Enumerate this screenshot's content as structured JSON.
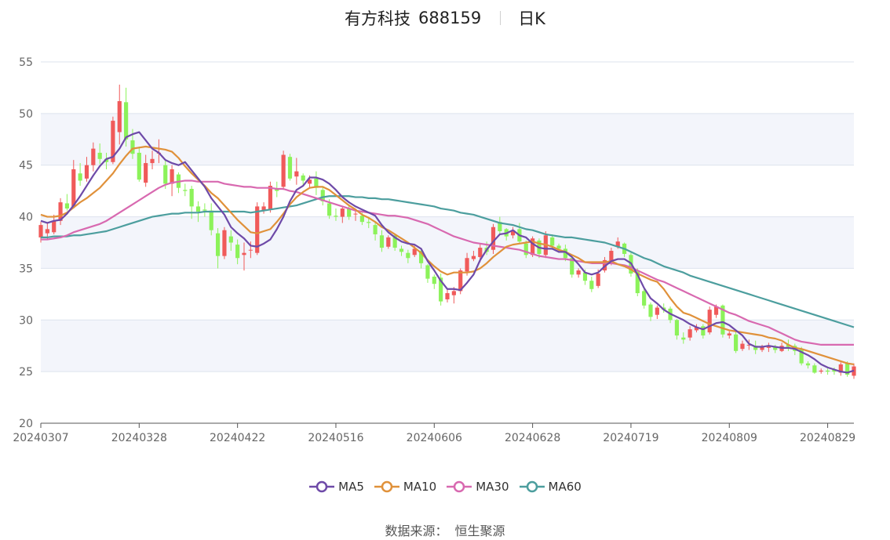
{
  "title": {
    "name": "有方科技",
    "code": "688159",
    "period": "日K"
  },
  "source": {
    "label": "数据来源：",
    "value": "恒生聚源"
  },
  "colors": {
    "up": "#f05a5a",
    "down": "#8cf25a",
    "ma5": "#6e4aa8",
    "ma10": "#e0913a",
    "ma30": "#d869b0",
    "ma60": "#4c9e9e",
    "band": "#f3f5fb",
    "grid": "#dde3ee"
  },
  "chart_data": {
    "type": "candlestick",
    "y_axis": {
      "min": 20,
      "max": 55,
      "ticks": [
        20,
        25,
        30,
        35,
        40,
        45,
        50,
        55
      ]
    },
    "x_labels": [
      "20240307",
      "20240328",
      "20240422",
      "20240516",
      "20240606",
      "20240628",
      "20240719",
      "20240809",
      "20240829"
    ],
    "x_label_index": [
      0,
      15,
      30,
      45,
      60,
      75,
      90,
      105,
      120
    ],
    "legend": [
      "MA5",
      "MA10",
      "MA30",
      "MA60"
    ],
    "candles": [
      [
        38.0,
        39.2,
        37.5,
        39.5
      ],
      [
        38.4,
        38.8,
        37.8,
        39.4
      ],
      [
        38.5,
        39.6,
        38.3,
        40.2
      ],
      [
        39.6,
        41.4,
        39.2,
        41.8
      ],
      [
        41.3,
        40.8,
        40.6,
        42.2
      ],
      [
        41.0,
        44.6,
        40.8,
        45.5
      ],
      [
        44.2,
        43.5,
        43.0,
        45.2
      ],
      [
        43.7,
        45.0,
        43.4,
        45.8
      ],
      [
        45.0,
        46.6,
        44.4,
        47.2
      ],
      [
        46.2,
        45.6,
        45.1,
        47.1
      ],
      [
        45.6,
        45.3,
        44.6,
        46.2
      ],
      [
        45.3,
        49.3,
        45.1,
        49.7
      ],
      [
        48.2,
        51.2,
        47.0,
        52.8
      ],
      [
        51.1,
        47.5,
        46.8,
        52.5
      ],
      [
        47.4,
        46.1,
        45.6,
        48.5
      ],
      [
        46.2,
        43.6,
        43.4,
        46.8
      ],
      [
        43.3,
        45.2,
        42.9,
        46.0
      ],
      [
        45.2,
        45.6,
        44.6,
        46.4
      ],
      [
        46.2,
        46.2,
        45.2,
        47.5
      ],
      [
        45.0,
        43.2,
        42.7,
        45.6
      ],
      [
        43.2,
        44.6,
        42.0,
        45.0
      ],
      [
        44.1,
        42.8,
        42.3,
        44.3
      ],
      [
        42.6,
        42.5,
        42.0,
        43.2
      ],
      [
        42.7,
        41.0,
        39.8,
        43.0
      ],
      [
        41.0,
        40.5,
        39.5,
        41.5
      ],
      [
        40.7,
        40.6,
        40.0,
        41.3
      ],
      [
        40.6,
        38.7,
        38.2,
        41.3
      ],
      [
        38.4,
        36.2,
        35.0,
        38.9
      ],
      [
        36.2,
        38.7,
        35.9,
        39.0
      ],
      [
        38.1,
        37.5,
        36.7,
        38.7
      ],
      [
        37.3,
        36.0,
        35.4,
        37.8
      ],
      [
        36.3,
        36.5,
        34.8,
        37.5
      ],
      [
        36.8,
        36.8,
        36.0,
        37.6
      ],
      [
        36.5,
        41.0,
        36.3,
        41.4
      ],
      [
        40.6,
        41.0,
        40.3,
        41.4
      ],
      [
        40.7,
        43.0,
        40.4,
        43.4
      ],
      [
        42.7,
        42.5,
        41.9,
        43.4
      ],
      [
        42.9,
        46.0,
        42.6,
        46.4
      ],
      [
        45.8,
        43.7,
        43.5,
        46.1
      ],
      [
        43.9,
        44.4,
        43.1,
        45.7
      ],
      [
        44.0,
        43.5,
        43.0,
        44.2
      ],
      [
        43.2,
        43.6,
        42.8,
        44.0
      ],
      [
        43.7,
        42.8,
        42.1,
        44.4
      ],
      [
        42.6,
        41.5,
        41.1,
        42.9
      ],
      [
        41.3,
        40.1,
        39.8,
        41.7
      ],
      [
        40.1,
        40.0,
        39.6,
        40.8
      ],
      [
        40.0,
        40.8,
        39.4,
        41.0
      ],
      [
        40.8,
        40.0,
        39.7,
        41.2
      ],
      [
        40.3,
        40.3,
        39.6,
        40.8
      ],
      [
        40.1,
        39.5,
        39.2,
        40.4
      ],
      [
        39.5,
        39.4,
        38.9,
        39.9
      ],
      [
        39.2,
        38.3,
        37.7,
        39.5
      ],
      [
        38.2,
        37.0,
        36.6,
        38.7
      ],
      [
        37.1,
        38.0,
        36.9,
        38.2
      ],
      [
        38.2,
        37.0,
        36.7,
        38.3
      ],
      [
        36.9,
        36.6,
        36.2,
        37.2
      ],
      [
        36.5,
        36.0,
        35.5,
        36.8
      ],
      [
        36.3,
        36.9,
        36.1,
        37.2
      ],
      [
        36.7,
        35.5,
        35.0,
        37.0
      ],
      [
        35.3,
        34.0,
        33.6,
        35.4
      ],
      [
        34.2,
        33.5,
        33.0,
        34.4
      ],
      [
        34.1,
        31.8,
        31.4,
        34.5
      ],
      [
        32.0,
        32.6,
        31.7,
        33.0
      ],
      [
        32.4,
        32.8,
        31.6,
        33.2
      ],
      [
        32.8,
        34.8,
        32.5,
        35.0
      ],
      [
        34.7,
        36.0,
        34.3,
        36.5
      ],
      [
        35.9,
        36.2,
        35.7,
        36.7
      ],
      [
        36.1,
        37.0,
        35.6,
        37.4
      ],
      [
        37.0,
        36.6,
        36.3,
        37.6
      ],
      [
        36.8,
        39.0,
        36.4,
        39.3
      ],
      [
        39.5,
        38.6,
        38.3,
        40.0
      ],
      [
        38.8,
        38.1,
        37.7,
        38.9
      ],
      [
        38.2,
        38.7,
        37.9,
        39.0
      ],
      [
        38.8,
        37.6,
        37.4,
        39.4
      ],
      [
        37.4,
        36.3,
        36.0,
        37.7
      ],
      [
        36.3,
        37.9,
        36.1,
        38.1
      ],
      [
        37.7,
        36.4,
        36.0,
        37.9
      ],
      [
        36.3,
        38.2,
        36.0,
        38.6
      ],
      [
        38.0,
        37.2,
        36.8,
        38.3
      ],
      [
        37.2,
        36.9,
        36.5,
        37.4
      ],
      [
        36.9,
        36.0,
        35.7,
        37.3
      ],
      [
        36.0,
        34.4,
        34.1,
        36.3
      ],
      [
        34.4,
        34.8,
        34.1,
        35.0
      ],
      [
        34.6,
        33.8,
        33.4,
        34.9
      ],
      [
        33.8,
        33.0,
        32.7,
        34.2
      ],
      [
        33.3,
        34.5,
        33.1,
        34.9
      ],
      [
        34.8,
        35.8,
        34.6,
        36.1
      ],
      [
        35.7,
        36.7,
        35.3,
        37.0
      ],
      [
        37.1,
        37.6,
        36.9,
        38.0
      ],
      [
        37.4,
        36.4,
        36.1,
        37.5
      ],
      [
        36.3,
        34.5,
        34.2,
        36.5
      ],
      [
        34.7,
        32.6,
        32.3,
        35.0
      ],
      [
        32.8,
        31.4,
        31.1,
        33.0
      ],
      [
        31.5,
        30.3,
        29.9,
        31.7
      ],
      [
        30.5,
        31.2,
        30.1,
        31.4
      ],
      [
        31.2,
        31.0,
        30.7,
        31.6
      ],
      [
        31.1,
        30.0,
        29.7,
        31.3
      ],
      [
        30.0,
        28.5,
        28.1,
        30.1
      ],
      [
        28.3,
        28.1,
        27.7,
        28.8
      ],
      [
        28.3,
        29.1,
        28.0,
        29.4
      ],
      [
        29.0,
        29.3,
        28.8,
        29.6
      ],
      [
        29.4,
        28.5,
        28.2,
        29.6
      ],
      [
        28.8,
        31.0,
        28.6,
        31.3
      ],
      [
        30.5,
        31.3,
        30.2,
        31.5
      ],
      [
        31.4,
        28.6,
        28.3,
        31.5
      ],
      [
        28.5,
        28.7,
        28.2,
        28.9
      ],
      [
        28.6,
        27.0,
        26.8,
        28.9
      ],
      [
        27.2,
        27.7,
        27.0,
        28.0
      ],
      [
        27.6,
        27.6,
        27.1,
        28.1
      ],
      [
        27.5,
        27.1,
        26.7,
        28.0
      ],
      [
        27.1,
        27.4,
        26.9,
        27.6
      ],
      [
        27.3,
        27.5,
        26.9,
        27.8
      ],
      [
        27.4,
        27.1,
        26.8,
        27.6
      ],
      [
        27.0,
        27.5,
        26.9,
        27.8
      ],
      [
        27.6,
        27.4,
        27.0,
        28.1
      ],
      [
        27.5,
        27.0,
        26.6,
        27.7
      ],
      [
        27.2,
        25.8,
        25.6,
        27.4
      ],
      [
        25.8,
        25.6,
        25.3,
        26.0
      ],
      [
        25.6,
        24.9,
        24.8,
        25.8
      ],
      [
        25.0,
        25.1,
        24.8,
        25.3
      ],
      [
        25.1,
        25.0,
        24.7,
        25.3
      ],
      [
        25.2,
        25.0,
        24.7,
        25.4
      ],
      [
        24.9,
        25.7,
        24.6,
        25.9
      ],
      [
        25.8,
        24.7,
        24.5,
        26.0
      ],
      [
        24.6,
        25.5,
        24.3,
        25.8
      ]
    ],
    "ma5": [
      39.6,
      39.4,
      39.6,
      39.7,
      40.3,
      41.1,
      42.0,
      43.0,
      44.0,
      44.9,
      45.6,
      45.8,
      46.6,
      47.7,
      48.0,
      48.2,
      47.4,
      46.6,
      46.2,
      45.5,
      45.2,
      45.0,
      45.3,
      44.5,
      43.7,
      42.9,
      41.8,
      41.0,
      40.2,
      39.0,
      38.4,
      37.9,
      37.2,
      37.1,
      37.4,
      37.8,
      38.8,
      40.0,
      41.5,
      42.6,
      43.0,
      43.8,
      43.8,
      43.6,
      43.2,
      42.6,
      41.9,
      41.4,
      41.0,
      40.7,
      40.4,
      40.1,
      39.2,
      38.5,
      38.0,
      37.6,
      37.4,
      37.3,
      36.9,
      35.7,
      34.8,
      33.8,
      33.0,
      33.0,
      32.9,
      33.6,
      34.4,
      35.8,
      36.8,
      37.6,
      38.3,
      38.4,
      38.7,
      38.2,
      38.0,
      37.4,
      37.0,
      36.9,
      36.9,
      36.6,
      36.6,
      36.1,
      35.4,
      34.6,
      34.4,
      34.6,
      35.2,
      35.7,
      35.9,
      35.9,
      35.5,
      34.4,
      33.1,
      32.1,
      31.6,
      31.0,
      30.6,
      30.3,
      30.0,
      29.6,
      29.3,
      29.1,
      29.4,
      29.7,
      29.8,
      29.5,
      29.0,
      28.5,
      27.7,
      27.4,
      27.4,
      27.5,
      27.4,
      27.3,
      27.3,
      27.2,
      26.9,
      26.6,
      26.2,
      25.7,
      25.4,
      25.2,
      25.0,
      24.9,
      25.1
    ],
    "ma10": [
      40.2,
      40.0,
      40.0,
      40.1,
      40.4,
      40.9,
      41.4,
      41.8,
      42.3,
      42.8,
      43.5,
      44.2,
      45.1,
      45.9,
      46.6,
      46.7,
      46.8,
      46.7,
      46.6,
      46.5,
      46.3,
      45.7,
      44.9,
      44.2,
      43.6,
      43.0,
      42.3,
      41.8,
      41.1,
      40.4,
      39.7,
      39.1,
      38.5,
      38.4,
      38.6,
      38.8,
      39.5,
      40.3,
      41.2,
      41.9,
      42.4,
      42.8,
      42.9,
      42.9,
      42.6,
      42.1,
      41.6,
      41.1,
      40.7,
      40.2,
      39.9,
      39.5,
      39.0,
      38.7,
      38.3,
      37.9,
      37.5,
      37.0,
      36.5,
      35.8,
      35.2,
      34.7,
      34.4,
      34.6,
      34.6,
      34.6,
      34.7,
      35.0,
      35.5,
      36.1,
      36.6,
      37.1,
      37.3,
      37.4,
      37.5,
      37.6,
      37.4,
      37.3,
      37.1,
      36.8,
      36.6,
      36.3,
      36.0,
      35.6,
      35.6,
      35.6,
      35.6,
      35.7,
      35.4,
      35.2,
      34.9,
      34.5,
      34.2,
      33.9,
      33.7,
      33.0,
      32.1,
      31.3,
      30.7,
      30.5,
      30.2,
      29.9,
      29.6,
      29.4,
      29.2,
      29.0,
      28.9,
      28.8,
      28.7,
      28.6,
      28.5,
      28.3,
      28.2,
      28.0,
      27.6,
      27.3,
      27.2,
      27.0,
      26.8,
      26.6,
      26.4,
      26.2,
      26.0,
      25.8,
      25.7
    ],
    "ma30": [
      37.8,
      37.8,
      37.9,
      38.0,
      38.2,
      38.5,
      38.7,
      38.9,
      39.1,
      39.3,
      39.6,
      40.0,
      40.4,
      40.8,
      41.2,
      41.6,
      42.0,
      42.4,
      42.8,
      43.1,
      43.3,
      43.4,
      43.5,
      43.5,
      43.4,
      43.4,
      43.4,
      43.4,
      43.2,
      43.1,
      43.0,
      42.9,
      42.9,
      42.8,
      42.8,
      42.8,
      42.7,
      42.7,
      42.5,
      42.4,
      42.2,
      42.0,
      41.8,
      41.6,
      41.4,
      41.2,
      41.0,
      40.8,
      40.6,
      40.5,
      40.4,
      40.3,
      40.2,
      40.1,
      40.1,
      40.0,
      39.9,
      39.7,
      39.5,
      39.3,
      39.0,
      38.7,
      38.4,
      38.1,
      37.9,
      37.7,
      37.5,
      37.4,
      37.3,
      37.2,
      37.1,
      37.0,
      36.9,
      36.8,
      36.6,
      36.4,
      36.2,
      36.1,
      36.0,
      35.9,
      35.9,
      35.8,
      35.7,
      35.6,
      35.5,
      35.5,
      35.5,
      35.5,
      35.4,
      35.3,
      35.1,
      34.8,
      34.5,
      34.2,
      33.9,
      33.7,
      33.4,
      33.1,
      32.8,
      32.5,
      32.2,
      31.9,
      31.6,
      31.3,
      31.0,
      30.7,
      30.5,
      30.2,
      29.9,
      29.7,
      29.5,
      29.3,
      29.0,
      28.7,
      28.4,
      28.1,
      27.9,
      27.8,
      27.7,
      27.6,
      27.6,
      27.6,
      27.6,
      27.6,
      27.6
    ],
    "ma60": [
      38.0,
      38.0,
      38.1,
      38.1,
      38.1,
      38.2,
      38.2,
      38.3,
      38.4,
      38.5,
      38.6,
      38.8,
      39.0,
      39.2,
      39.4,
      39.6,
      39.8,
      40.0,
      40.1,
      40.2,
      40.3,
      40.3,
      40.4,
      40.4,
      40.4,
      40.5,
      40.5,
      40.5,
      40.5,
      40.5,
      40.5,
      40.5,
      40.4,
      40.5,
      40.6,
      40.7,
      40.8,
      40.9,
      41.0,
      41.1,
      41.3,
      41.5,
      41.7,
      41.9,
      42.0,
      42.0,
      42.0,
      42.0,
      41.9,
      41.9,
      41.8,
      41.8,
      41.7,
      41.7,
      41.6,
      41.5,
      41.4,
      41.3,
      41.2,
      41.1,
      41.0,
      40.8,
      40.7,
      40.6,
      40.4,
      40.3,
      40.2,
      40.0,
      39.8,
      39.6,
      39.4,
      39.3,
      39.2,
      39.0,
      38.8,
      38.7,
      38.5,
      38.3,
      38.2,
      38.1,
      38.0,
      38.0,
      37.9,
      37.8,
      37.7,
      37.6,
      37.5,
      37.3,
      37.1,
      36.9,
      36.6,
      36.3,
      36.0,
      35.8,
      35.5,
      35.2,
      35.0,
      34.8,
      34.6,
      34.3,
      34.1,
      33.9,
      33.7,
      33.5,
      33.3,
      33.1,
      32.9,
      32.7,
      32.5,
      32.3,
      32.1,
      31.9,
      31.7,
      31.5,
      31.3,
      31.1,
      30.9,
      30.7,
      30.5,
      30.3,
      30.1,
      29.9,
      29.7,
      29.5,
      29.3
    ]
  }
}
